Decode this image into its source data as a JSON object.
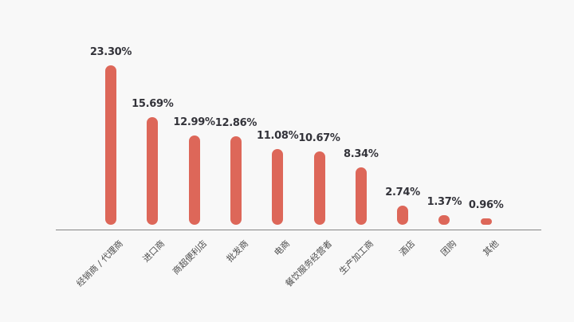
{
  "background_color": "#f8f8f8",
  "chart_data": {
    "type": "bar",
    "title": "",
    "xlabel": "",
    "ylabel": "",
    "unit": "%",
    "grid": false,
    "legend": "none",
    "orientation": "vertical",
    "ylim": [
      0,
      25
    ],
    "categories": [
      "经销商 / 代理商",
      "进口商",
      "商超便利店",
      "批发商",
      "电商",
      "餐饮服务经营者",
      "生产加工商",
      "酒店",
      "团购",
      "其他"
    ],
    "values": [
      23.3,
      15.69,
      12.99,
      12.86,
      11.08,
      10.67,
      8.34,
      2.74,
      1.37,
      0.96
    ],
    "value_labels": [
      "23.30%",
      "15.69%",
      "12.99%",
      "12.86%",
      "11.08%",
      "10.67%",
      "8.34%",
      "2.74%",
      "1.37%",
      "0.96%"
    ],
    "bar_color": "#DD6759",
    "value_label_color": "#33333a",
    "category_label_color": "#4d4d4d",
    "axis_color": "#858585"
  }
}
